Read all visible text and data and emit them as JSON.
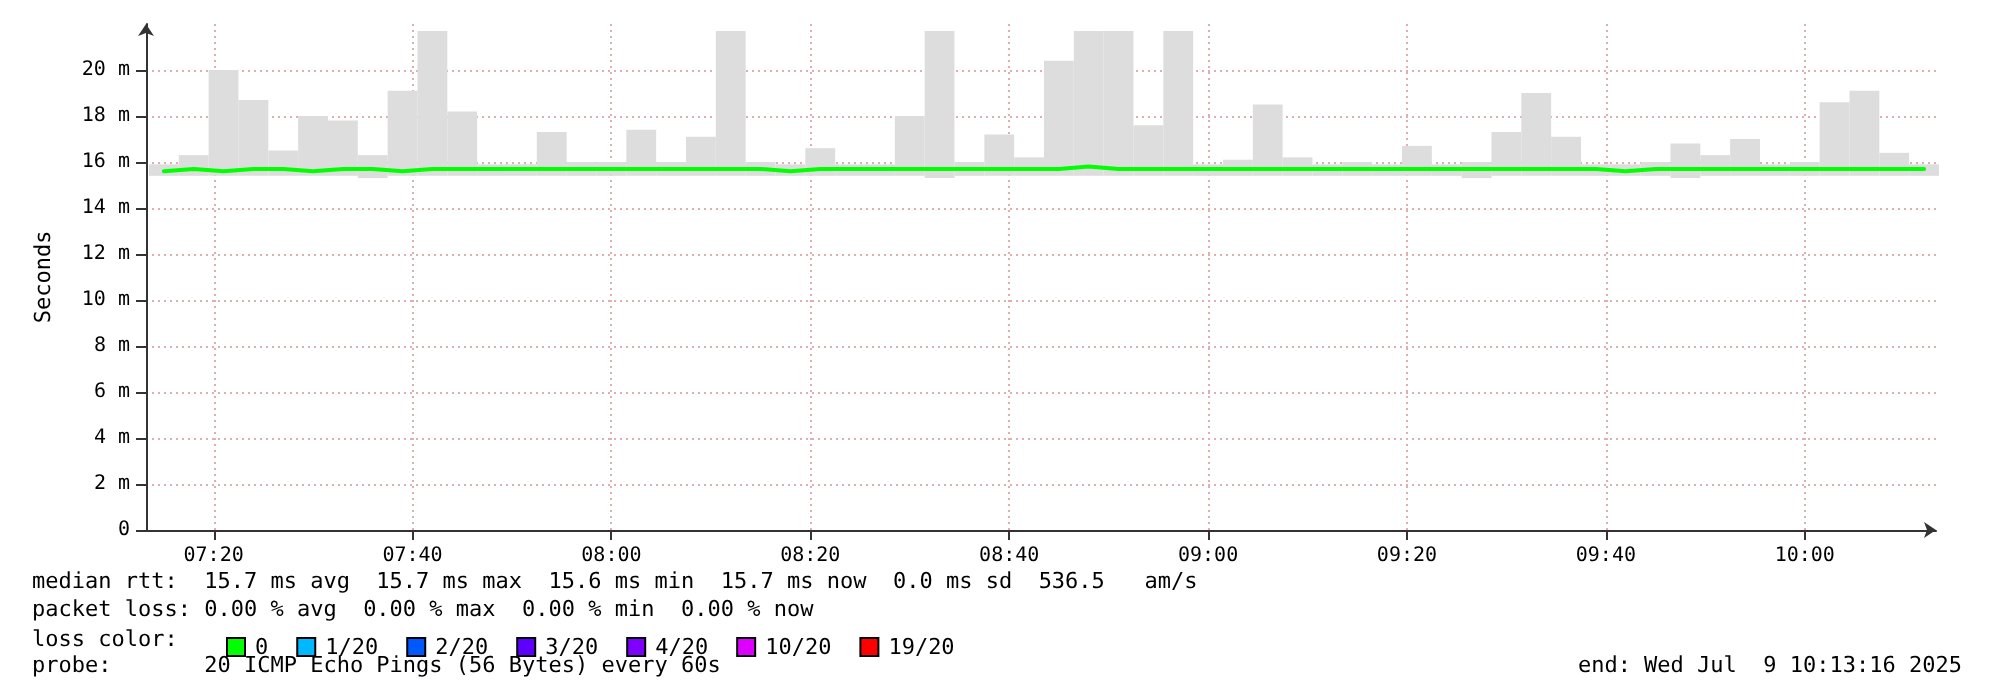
{
  "chart_data": {
    "type": "line",
    "ylabel": "Seconds",
    "legend_title": "loss color:",
    "legend": "bottom left",
    "grid": true,
    "marker": "none",
    "line_style": "solid",
    "x": [
      7.25,
      7.3,
      7.35,
      7.4,
      7.45,
      7.5,
      7.55,
      7.6,
      7.65,
      7.7,
      7.75,
      7.8,
      7.85,
      7.9,
      7.95,
      8,
      8.05,
      8.1,
      8.15,
      8.2,
      8.25,
      8.3,
      8.35,
      8.4,
      8.45,
      8.5,
      8.55,
      8.6,
      8.65,
      8.7,
      8.75,
      8.8,
      8.85,
      8.9,
      8.95,
      9,
      9.05,
      9.1,
      9.15,
      9.2,
      9.25,
      9.3,
      9.35,
      9.4,
      9.45,
      9.5,
      9.55,
      9.6,
      9.65,
      9.7,
      9.75,
      9.8,
      9.85,
      9.9,
      9.95,
      10,
      10.05,
      10.1,
      10.15,
      10.2
    ],
    "xlim": [
      7.22,
      10.22
    ],
    "xticks": [
      {
        "value": 7.3333,
        "label": "07:20"
      },
      {
        "value": 7.6667,
        "label": "07:40"
      },
      {
        "value": 8,
        "label": "08:00"
      },
      {
        "value": 8.3333,
        "label": "08:20"
      },
      {
        "value": 8.6667,
        "label": "08:40"
      },
      {
        "value": 9,
        "label": "09:00"
      },
      {
        "value": 9.3333,
        "label": "09:20"
      },
      {
        "value": 9.6667,
        "label": "09:40"
      },
      {
        "value": 10,
        "label": "10:00"
      }
    ],
    "ylim": [
      0,
      22
    ],
    "yticks": [
      0,
      {
        "value": 2,
        "label": "2 m"
      },
      {
        "value": 4,
        "label": "4 m"
      },
      {
        "value": 6,
        "label": "6 m"
      },
      {
        "value": 8,
        "label": "8 m"
      },
      {
        "value": 10,
        "label": "10 m"
      },
      {
        "value": 12,
        "label": "12 m"
      },
      {
        "value": 14,
        "label": "14 m"
      },
      {
        "value": 16,
        "label": "16 m"
      },
      {
        "value": 18,
        "label": "18 m"
      },
      {
        "value": 20,
        "label": "20 m"
      }
    ],
    "series": [
      {
        "type": "bar",
        "color": "#dddddd",
        "base": [
          15.4,
          15.4,
          15.4,
          15.4,
          15.4,
          15.4,
          15.4,
          15.3,
          15.4,
          15.4,
          15.4,
          15.4,
          15.4,
          15.4,
          15.4,
          15.4,
          15.4,
          15.4,
          15.4,
          15.4,
          15.4,
          15.4,
          15.4,
          15.4,
          15.4,
          15.4,
          15.3,
          15.4,
          15.4,
          15.4,
          15.4,
          15.4,
          15.4,
          15.4,
          15.4,
          15.4,
          15.4,
          15.4,
          15.4,
          15.4,
          15.4,
          15.4,
          15.4,
          15.4,
          15.3,
          15.4,
          15.4,
          15.4,
          15.4,
          15.4,
          15.4,
          15.3,
          15.4,
          15.4,
          15.4,
          15.4,
          15.4,
          15.4,
          15.4,
          15.4
        ],
        "values": [
          0.5,
          0.9,
          4.6,
          3.3,
          1.1,
          2.6,
          2.4,
          1.0,
          3.7,
          6.3,
          2.8,
          0.5,
          0.5,
          1.9,
          0.6,
          0.6,
          2.0,
          0.6,
          1.7,
          6.3,
          0.6,
          0.5,
          1.2,
          0.5,
          0.5,
          2.6,
          6.4,
          0.6,
          1.8,
          0.8,
          5.0,
          6.3,
          6.3,
          2.2,
          6.3,
          0.5,
          0.7,
          3.1,
          0.8,
          0.5,
          0.6,
          0.5,
          1.3,
          0.5,
          0.7,
          1.9,
          3.6,
          1.7,
          0.5,
          0.5,
          0.6,
          1.5,
          0.9,
          1.6,
          0.5,
          0.6,
          3.2,
          3.7,
          1.0,
          0.5
        ]
      },
      {
        "name": "0",
        "color": "#00ff00",
        "values": [
          15.6,
          15.7,
          15.6,
          15.7,
          15.7,
          15.6,
          15.7,
          15.7,
          15.6,
          15.7,
          15.7,
          15.7,
          15.7,
          15.7,
          15.7,
          15.7,
          15.7,
          15.7,
          15.7,
          15.7,
          15.7,
          15.6,
          15.7,
          15.7,
          15.7,
          15.7,
          15.7,
          15.7,
          15.7,
          15.7,
          15.7,
          15.8,
          15.7,
          15.7,
          15.7,
          15.7,
          15.7,
          15.7,
          15.7,
          15.7,
          15.7,
          15.7,
          15.7,
          15.7,
          15.7,
          15.7,
          15.7,
          15.7,
          15.7,
          15.6,
          15.7,
          15.7,
          15.7,
          15.7,
          15.7,
          15.7,
          15.7,
          15.7,
          15.7,
          15.7
        ]
      },
      {
        "name": "1/20",
        "color": "#00b8ff",
        "values": [
          null,
          null,
          null,
          null,
          null,
          null,
          null,
          null,
          null,
          null,
          null,
          null,
          null,
          null,
          null,
          null,
          null,
          null,
          null,
          null,
          null,
          null,
          null,
          null,
          null,
          null,
          null,
          null,
          null,
          null,
          null,
          null,
          null,
          null,
          null,
          null,
          null,
          null,
          null,
          null,
          null,
          null,
          null,
          null,
          null,
          null,
          null,
          null,
          null,
          null,
          null,
          null,
          null,
          null,
          null,
          null,
          null,
          null,
          null,
          null
        ]
      },
      {
        "name": "2/20",
        "color": "#0059ff",
        "values": [
          null,
          null,
          null,
          null,
          null,
          null,
          null,
          null,
          null,
          null,
          null,
          null,
          null,
          null,
          null,
          null,
          null,
          null,
          null,
          null,
          null,
          null,
          null,
          null,
          null,
          null,
          null,
          null,
          null,
          null,
          null,
          null,
          null,
          null,
          null,
          null,
          null,
          null,
          null,
          null,
          null,
          null,
          null,
          null,
          null,
          null,
          null,
          null,
          null,
          null,
          null,
          null,
          null,
          null,
          null,
          null,
          null,
          null,
          null,
          null
        ]
      },
      {
        "name": "3/20",
        "color": "#5e00ff",
        "values": [
          null,
          null,
          null,
          null,
          null,
          null,
          null,
          null,
          null,
          null,
          null,
          null,
          null,
          null,
          null,
          null,
          null,
          null,
          null,
          null,
          null,
          null,
          null,
          null,
          null,
          null,
          null,
          null,
          null,
          null,
          null,
          null,
          null,
          null,
          null,
          null,
          null,
          null,
          null,
          null,
          null,
          null,
          null,
          null,
          null,
          null,
          null,
          null,
          null,
          null,
          null,
          null,
          null,
          null,
          null,
          null,
          null,
          null,
          null,
          null
        ]
      },
      {
        "name": "4/20",
        "color": "#7e00ff",
        "values": [
          null,
          null,
          null,
          null,
          null,
          null,
          null,
          null,
          null,
          null,
          null,
          null,
          null,
          null,
          null,
          null,
          null,
          null,
          null,
          null,
          null,
          null,
          null,
          null,
          null,
          null,
          null,
          null,
          null,
          null,
          null,
          null,
          null,
          null,
          null,
          null,
          null,
          null,
          null,
          null,
          null,
          null,
          null,
          null,
          null,
          null,
          null,
          null,
          null,
          null,
          null,
          null,
          null,
          null,
          null,
          null,
          null,
          null,
          null,
          null
        ]
      },
      {
        "name": "10/20",
        "color": "#dd00ff",
        "values": [
          null,
          null,
          null,
          null,
          null,
          null,
          null,
          null,
          null,
          null,
          null,
          null,
          null,
          null,
          null,
          null,
          null,
          null,
          null,
          null,
          null,
          null,
          null,
          null,
          null,
          null,
          null,
          null,
          null,
          null,
          null,
          null,
          null,
          null,
          null,
          null,
          null,
          null,
          null,
          null,
          null,
          null,
          null,
          null,
          null,
          null,
          null,
          null,
          null,
          null,
          null,
          null,
          null,
          null,
          null,
          null,
          null,
          null,
          null,
          null
        ]
      },
      {
        "name": "19/20",
        "color": "#ff0000",
        "values": [
          null,
          null,
          null,
          null,
          null,
          null,
          null,
          null,
          null,
          null,
          null,
          null,
          null,
          null,
          null,
          null,
          null,
          null,
          null,
          null,
          null,
          null,
          null,
          null,
          null,
          null,
          null,
          null,
          null,
          null,
          null,
          null,
          null,
          null,
          null,
          null,
          null,
          null,
          null,
          null,
          null,
          null,
          null,
          null,
          null,
          null,
          null,
          null,
          null,
          null,
          null,
          null,
          null,
          null,
          null,
          null,
          null,
          null,
          null,
          null
        ]
      }
    ],
    "annotations": [
      "median rtt:  15.7 ms avg  15.7 ms max  15.6 ms min  15.7 ms now  0.0 ms sd  536.5   am/s",
      "packet loss: 0.00 % avg  0.00 % max  0.00 % min  0.00 % now",
      "probe:       20 ICMP Echo Pings (56 Bytes) every 60s",
      "end: Wed Jul  9 10:13:16 2025"
    ]
  }
}
